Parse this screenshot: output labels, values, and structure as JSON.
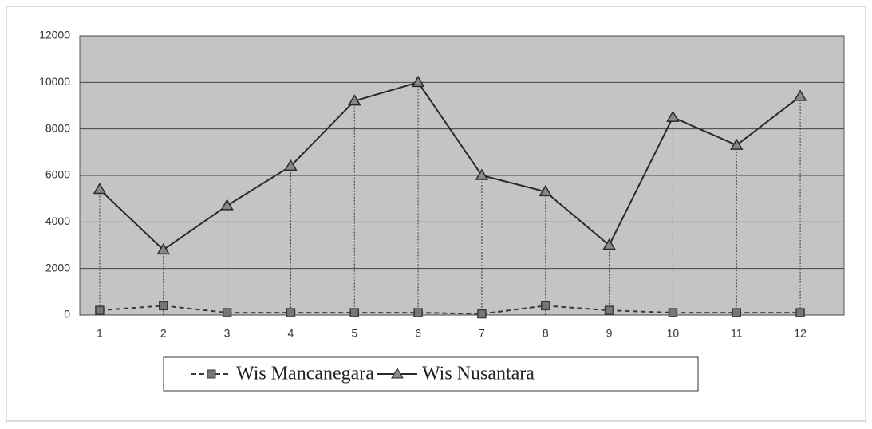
{
  "chart_data": {
    "type": "line",
    "categories": [
      1,
      2,
      3,
      4,
      5,
      6,
      7,
      8,
      9,
      10,
      11,
      12
    ],
    "series": [
      {
        "name": "Wis Mancanegara",
        "color": "#3a3a3a",
        "dash": true,
        "marker": "square",
        "values": [
          200,
          400,
          100,
          100,
          100,
          100,
          50,
          400,
          200,
          100,
          100,
          100
        ]
      },
      {
        "name": "Wis Nusantara",
        "color": "#2a2a2a",
        "dash": false,
        "marker": "triangle",
        "values": [
          5400,
          2800,
          4700,
          6400,
          9200,
          10000,
          6000,
          5300,
          3000,
          8500,
          7300,
          9400
        ]
      }
    ],
    "ylim": [
      0,
      12000
    ],
    "yticks": [
      0,
      2000,
      4000,
      6000,
      8000,
      10000,
      12000
    ],
    "grid": true,
    "drop_lines": true,
    "legend": "bottom"
  }
}
